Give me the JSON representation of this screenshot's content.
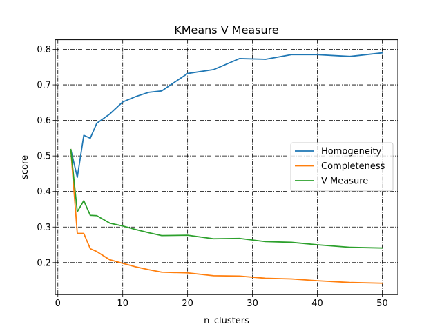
{
  "chart_data": {
    "type": "line",
    "title": "KMeans V Measure",
    "xlabel": "n_clusters",
    "ylabel": "score",
    "xlim": [
      -0.4,
      52.4
    ],
    "ylim": [
      0.11,
      0.827
    ],
    "xticks": [
      0,
      10,
      20,
      30,
      40,
      50
    ],
    "xtick_labels": [
      "0",
      "10",
      "20",
      "30",
      "40",
      "50"
    ],
    "yticks": [
      0.2,
      0.3,
      0.4,
      0.5,
      0.6,
      0.7,
      0.8
    ],
    "ytick_labels": [
      "0.2",
      "0.3",
      "0.4",
      "0.5",
      "0.6",
      "0.7",
      "0.8"
    ],
    "grid": true,
    "grid_style": "dash-dot",
    "legend_position": "center-right",
    "series": [
      {
        "name": "Homogeneity",
        "color": "#1f77b4",
        "x": [
          2,
          3,
          4,
          5,
          6,
          8,
          10,
          12,
          14,
          16,
          20,
          24,
          28,
          32,
          36,
          40,
          45,
          50
        ],
        "y": [
          0.518,
          0.44,
          0.558,
          0.55,
          0.592,
          0.618,
          0.652,
          0.667,
          0.679,
          0.683,
          0.732,
          0.743,
          0.774,
          0.772,
          0.785,
          0.785,
          0.78,
          0.79
        ]
      },
      {
        "name": "Completeness",
        "color": "#ff7f0e",
        "x": [
          2,
          3,
          4,
          5,
          6,
          8,
          10,
          12,
          14,
          16,
          20,
          24,
          28,
          32,
          36,
          40,
          45,
          50
        ],
        "y": [
          0.518,
          0.282,
          0.282,
          0.239,
          0.231,
          0.208,
          0.198,
          0.188,
          0.18,
          0.173,
          0.171,
          0.163,
          0.162,
          0.156,
          0.154,
          0.149,
          0.144,
          0.142
        ]
      },
      {
        "name": "V Measure",
        "color": "#2ca02c",
        "x": [
          2,
          3,
          4,
          5,
          6,
          8,
          10,
          12,
          14,
          16,
          20,
          24,
          28,
          32,
          36,
          40,
          45,
          50
        ],
        "y": [
          0.518,
          0.343,
          0.374,
          0.333,
          0.332,
          0.311,
          0.303,
          0.293,
          0.284,
          0.276,
          0.277,
          0.267,
          0.268,
          0.259,
          0.257,
          0.25,
          0.243,
          0.241
        ]
      }
    ]
  }
}
